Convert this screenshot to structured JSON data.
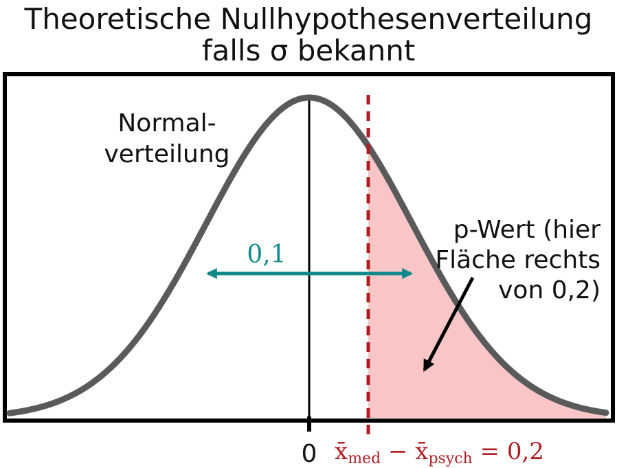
{
  "title": {
    "line1": "Theoretische Nullhypothesenverteilung",
    "line2": "falls σ bekannt"
  },
  "curve_label": {
    "line1": "Normal-",
    "line2": "verteilung"
  },
  "width_label": "0,1",
  "pvalue_label": {
    "line1": "p-Wert (hier",
    "line2": "Fläche rechts",
    "line3": "von 0,2)"
  },
  "axis": {
    "zero_label": "0",
    "diff_prefix": "x̄",
    "diff_sub1": "med",
    "diff_minus": " − x̄",
    "diff_sub2": "psych",
    "diff_eq": " = 0,2"
  },
  "colors": {
    "curve": "#5a5a5a",
    "frame": "#000000",
    "teal": "#128a8a",
    "threshold": "#b01e23",
    "shade": "#f8c6c6"
  }
}
